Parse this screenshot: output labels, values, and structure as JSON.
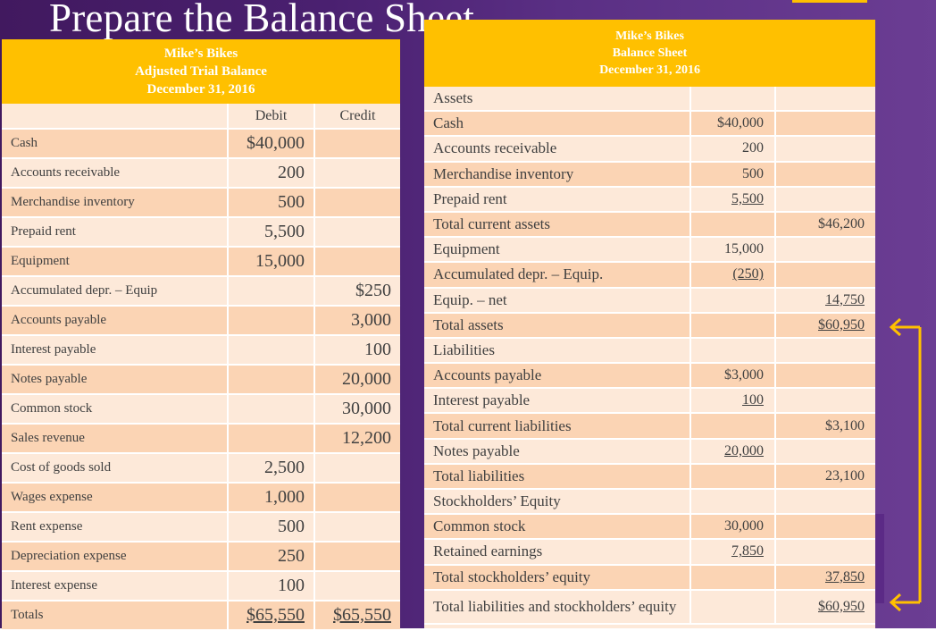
{
  "slide": {
    "title": "Prepare the Balance Sheet"
  },
  "colors": {
    "accent": "#ffc000",
    "row_light": "#fde9d9",
    "row_dark": "#fbd4b4",
    "background": "#4a2070"
  },
  "trial_balance": {
    "header": {
      "company": "Mike’s Bikes",
      "title": "Adjusted Trial Balance",
      "date": "December 31, 2016"
    },
    "columns": {
      "debit": "Debit",
      "credit": "Credit"
    },
    "rows": [
      {
        "account": "Cash",
        "debit": "$40,000",
        "credit": ""
      },
      {
        "account": "Accounts receivable",
        "debit": "200",
        "credit": ""
      },
      {
        "account": "Merchandise inventory",
        "debit": "500",
        "credit": ""
      },
      {
        "account": "Prepaid rent",
        "debit": "5,500",
        "credit": ""
      },
      {
        "account": "Equipment",
        "debit": "15,000",
        "credit": ""
      },
      {
        "account": "Accumulated depr. – Equip",
        "debit": "",
        "credit": "$250"
      },
      {
        "account": "Accounts payable",
        "debit": "",
        "credit": "3,000"
      },
      {
        "account": "Interest payable",
        "debit": "",
        "credit": "100"
      },
      {
        "account": "Notes payable",
        "debit": "",
        "credit": "20,000"
      },
      {
        "account": "Common stock",
        "debit": "",
        "credit": "30,000"
      },
      {
        "account": "Sales revenue",
        "debit": "",
        "credit": "12,200"
      },
      {
        "account": "Cost of goods sold",
        "debit": "2,500",
        "credit": ""
      },
      {
        "account": "Wages expense",
        "debit": "1,000",
        "credit": ""
      },
      {
        "account": "Rent expense",
        "debit": "500",
        "credit": ""
      },
      {
        "account": "Depreciation expense",
        "debit": "250",
        "credit": ""
      },
      {
        "account": "Interest expense",
        "debit": "100",
        "credit": ""
      }
    ],
    "totals": {
      "label": "Totals",
      "debit": "$65,550",
      "credit": "$65,550"
    }
  },
  "balance_sheet": {
    "header": {
      "company": "Mike’s Bikes",
      "title": "Balance Sheet",
      "date": "December 31, 2016"
    },
    "rows": [
      {
        "label": "Assets",
        "col1": "",
        "col2": ""
      },
      {
        "label": "Cash",
        "col1": "$40,000",
        "col2": ""
      },
      {
        "label": "Accounts receivable",
        "col1": "200",
        "col2": ""
      },
      {
        "label": "Merchandise inventory",
        "col1": "500",
        "col2": ""
      },
      {
        "label": "Prepaid rent",
        "col1": "5,500",
        "col2": ""
      },
      {
        "label": "Total current assets",
        "col1": "",
        "col2": "$46,200"
      },
      {
        "label": "Equipment",
        "col1": "15,000",
        "col2": ""
      },
      {
        "label": "Accumulated depr. – Equip.",
        "col1": "(250)",
        "col2": ""
      },
      {
        "label": "Equip. – net",
        "col1": "",
        "col2": "14,750"
      },
      {
        "label": "Total assets",
        "col1": "",
        "col2": "$60,950"
      },
      {
        "label": "Liabilities",
        "col1": "",
        "col2": ""
      },
      {
        "label": "Accounts payable",
        "col1": "$3,000",
        "col2": ""
      },
      {
        "label": "Interest payable",
        "col1": "100",
        "col2": ""
      },
      {
        "label": "Total current liabilities",
        "col1": "",
        "col2": "$3,100"
      },
      {
        "label": "Notes payable",
        "col1": "20,000",
        "col2": ""
      },
      {
        "label": "Total liabilities",
        "col1": "",
        "col2": "23,100"
      },
      {
        "label": "Stockholders’ Equity",
        "col1": "",
        "col2": ""
      },
      {
        "label": "Common stock",
        "col1": "30,000",
        "col2": ""
      },
      {
        "label": "Retained earnings",
        "col1": "7,850",
        "col2": ""
      },
      {
        "label": "Total stockholders’ equity",
        "col1": "",
        "col2": "37,850"
      },
      {
        "label": "Total liabilities and stockholders’ equity",
        "col1": "",
        "col2": "$60,950"
      }
    ]
  }
}
